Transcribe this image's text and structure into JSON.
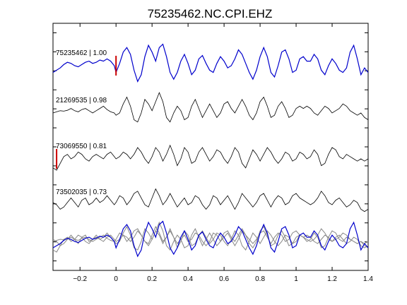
{
  "title": "75235462.NC.CPI.EHZ",
  "chart_data": {
    "type": "line",
    "title": "75235462.NC.CPI.EHZ",
    "xlabel": "",
    "ylabel": "",
    "xlim": [
      -0.35,
      1.4
    ],
    "xticks": [
      -0.2,
      0,
      0.2,
      0.4,
      0.6,
      0.8,
      1,
      1.2,
      1.4
    ],
    "xtick_labels": [
      "−0.2",
      "0",
      "0.2",
      "0.4",
      "0.6",
      "0.8",
      "1",
      "1.2",
      "1.4"
    ],
    "grid": false,
    "pick_color": "#cc0000",
    "series": [
      {
        "name": "75235462 | 1.00",
        "color": "#0000cc",
        "pick_x": 0.0,
        "x": [
          -0.35,
          -0.33,
          -0.31,
          -0.29,
          -0.27,
          -0.25,
          -0.23,
          -0.21,
          -0.19,
          -0.17,
          -0.15,
          -0.13,
          -0.11,
          -0.09,
          -0.07,
          -0.05,
          -0.03,
          -0.01,
          0.0,
          0.02,
          0.04,
          0.06,
          0.08,
          0.1,
          0.12,
          0.14,
          0.16,
          0.18,
          0.2,
          0.22,
          0.24,
          0.26,
          0.28,
          0.3,
          0.32,
          0.34,
          0.36,
          0.38,
          0.4,
          0.42,
          0.44,
          0.46,
          0.48,
          0.5,
          0.52,
          0.54,
          0.56,
          0.58,
          0.6,
          0.62,
          0.64,
          0.66,
          0.68,
          0.7,
          0.72,
          0.74,
          0.76,
          0.78,
          0.8,
          0.82,
          0.84,
          0.86,
          0.88,
          0.9,
          0.92,
          0.94,
          0.96,
          0.98,
          1.0,
          1.02,
          1.04,
          1.06,
          1.08,
          1.1,
          1.12,
          1.14,
          1.16,
          1.18,
          1.2,
          1.22,
          1.24,
          1.26,
          1.28,
          1.3,
          1.32,
          1.34,
          1.36,
          1.38,
          1.4
        ],
        "y": [
          -0.3,
          -0.2,
          -0.1,
          0.05,
          0.15,
          0.1,
          0.0,
          -0.05,
          0.05,
          0.15,
          0.2,
          0.1,
          0.15,
          0.25,
          0.2,
          0.3,
          0.2,
          0.0,
          -0.3,
          0.1,
          0.6,
          0.8,
          0.5,
          -0.2,
          -0.7,
          -0.4,
          0.4,
          0.9,
          0.6,
          0.2,
          0.8,
          0.95,
          0.4,
          -0.3,
          -0.6,
          -0.3,
          0.2,
          0.5,
          0.1,
          -0.4,
          -0.2,
          0.3,
          0.45,
          0.1,
          -0.2,
          -0.3,
          0.1,
          0.4,
          0.2,
          -0.1,
          0.0,
          0.3,
          0.7,
          0.5,
          0.1,
          -0.3,
          -0.6,
          -0.2,
          0.4,
          0.8,
          0.4,
          -0.3,
          -0.5,
          0.0,
          0.6,
          0.7,
          0.3,
          -0.3,
          -0.2,
          0.3,
          0.4,
          0.2,
          0.2,
          0.5,
          0.3,
          -0.2,
          -0.4,
          0.0,
          0.3,
          0.1,
          -0.2,
          -0.3,
          -0.1,
          0.6,
          0.9,
          0.3,
          -0.4,
          -0.1,
          -0.3
        ]
      },
      {
        "name": "21269535 | 0.98",
        "color": "#000000",
        "x": [
          -0.35,
          -0.33,
          -0.31,
          -0.29,
          -0.27,
          -0.25,
          -0.23,
          -0.21,
          -0.19,
          -0.17,
          -0.15,
          -0.13,
          -0.11,
          -0.09,
          -0.07,
          -0.05,
          -0.03,
          -0.01,
          0.0,
          0.02,
          0.04,
          0.06,
          0.08,
          0.1,
          0.12,
          0.14,
          0.16,
          0.18,
          0.2,
          0.22,
          0.24,
          0.26,
          0.28,
          0.3,
          0.32,
          0.34,
          0.36,
          0.38,
          0.4,
          0.42,
          0.44,
          0.46,
          0.48,
          0.5,
          0.52,
          0.54,
          0.56,
          0.58,
          0.6,
          0.62,
          0.64,
          0.66,
          0.68,
          0.7,
          0.72,
          0.74,
          0.76,
          0.78,
          0.8,
          0.82,
          0.84,
          0.86,
          0.88,
          0.9,
          0.92,
          0.94,
          0.96,
          0.98,
          1.0,
          1.02,
          1.04,
          1.06,
          1.08,
          1.1,
          1.12,
          1.14,
          1.16,
          1.18,
          1.2,
          1.22,
          1.24,
          1.26,
          1.28,
          1.3,
          1.32,
          1.34,
          1.36,
          1.38,
          1.4
        ],
        "y": [
          0.0,
          0.05,
          0.1,
          0.08,
          0.12,
          0.2,
          0.1,
          0.05,
          0.15,
          0.2,
          0.1,
          0.0,
          0.1,
          0.2,
          0.3,
          0.15,
          0.05,
          0.0,
          -0.1,
          0.0,
          0.4,
          0.7,
          0.3,
          -0.3,
          -0.4,
          0.0,
          0.6,
          0.4,
          0.1,
          0.5,
          0.9,
          0.5,
          -0.2,
          -0.4,
          0.0,
          0.3,
          0.1,
          -0.3,
          -0.2,
          0.3,
          0.6,
          0.2,
          -0.2,
          0.1,
          0.4,
          0.1,
          -0.2,
          0.0,
          0.4,
          0.5,
          0.2,
          0.0,
          0.3,
          0.6,
          0.3,
          -0.1,
          -0.3,
          0.0,
          0.5,
          0.7,
          0.3,
          -0.2,
          -0.1,
          0.3,
          0.5,
          0.2,
          -0.2,
          -0.1,
          0.2,
          0.3,
          0.2,
          0.3,
          0.2,
          0.0,
          -0.1,
          0.1,
          0.3,
          0.2,
          0.0,
          0.1,
          0.2,
          0.4,
          0.3,
          0.1,
          0.0,
          -0.1,
          0.0,
          -0.2,
          -0.3
        ]
      },
      {
        "name": "73069550 | 0.81",
        "color": "#000000",
        "pick_x": -0.33,
        "x": [
          -0.35,
          -0.33,
          -0.31,
          -0.29,
          -0.27,
          -0.25,
          -0.23,
          -0.21,
          -0.19,
          -0.17,
          -0.15,
          -0.13,
          -0.11,
          -0.09,
          -0.07,
          -0.05,
          -0.03,
          -0.01,
          0.0,
          0.02,
          0.04,
          0.06,
          0.08,
          0.1,
          0.12,
          0.14,
          0.16,
          0.18,
          0.2,
          0.22,
          0.24,
          0.26,
          0.28,
          0.3,
          0.32,
          0.34,
          0.36,
          0.38,
          0.4,
          0.42,
          0.44,
          0.46,
          0.48,
          0.5,
          0.52,
          0.54,
          0.56,
          0.58,
          0.6,
          0.62,
          0.64,
          0.66,
          0.68,
          0.7,
          0.72,
          0.74,
          0.76,
          0.78,
          0.8,
          0.82,
          0.84,
          0.86,
          0.88,
          0.9,
          0.92,
          0.94,
          0.96,
          0.98,
          1.0,
          1.02,
          1.04,
          1.06,
          1.08,
          1.1,
          1.12,
          1.14,
          1.16,
          1.18,
          1.2,
          1.22,
          1.24,
          1.26,
          1.28,
          1.3,
          1.32,
          1.34,
          1.36,
          1.38,
          1.4
        ],
        "y": [
          -0.4,
          -0.5,
          -0.2,
          0.1,
          0.2,
          0.0,
          0.1,
          0.3,
          0.2,
          0.0,
          -0.1,
          0.1,
          0.2,
          0.1,
          0.0,
          0.2,
          0.3,
          0.1,
          0.0,
          0.1,
          0.3,
          0.2,
          0.0,
          0.2,
          0.5,
          0.3,
          0.0,
          -0.2,
          0.1,
          0.5,
          0.3,
          -0.1,
          0.2,
          0.6,
          0.2,
          -0.3,
          0.0,
          0.5,
          0.3,
          -0.2,
          -0.1,
          0.3,
          0.5,
          0.2,
          -0.1,
          0.1,
          0.4,
          0.3,
          0.0,
          -0.2,
          0.1,
          0.5,
          0.3,
          -0.2,
          -0.4,
          0.0,
          0.4,
          0.2,
          -0.1,
          0.2,
          0.5,
          0.3,
          0.0,
          -0.2,
          0.0,
          0.3,
          0.2,
          -0.1,
          0.0,
          0.3,
          0.2,
          0.0,
          0.1,
          0.4,
          0.2,
          -0.3,
          -0.2,
          0.2,
          0.5,
          0.4,
          0.1,
          0.0,
          0.2,
          0.1,
          0.0,
          -0.1,
          0.0,
          -0.1,
          0.0
        ]
      },
      {
        "name": "73502035 | 0.73",
        "color": "#000000",
        "x": [
          -0.35,
          -0.33,
          -0.31,
          -0.29,
          -0.27,
          -0.25,
          -0.23,
          -0.21,
          -0.19,
          -0.17,
          -0.15,
          -0.13,
          -0.11,
          -0.09,
          -0.07,
          -0.05,
          -0.03,
          -0.01,
          0.0,
          0.02,
          0.04,
          0.06,
          0.08,
          0.1,
          0.12,
          0.14,
          0.16,
          0.18,
          0.2,
          0.22,
          0.24,
          0.26,
          0.28,
          0.3,
          0.32,
          0.34,
          0.36,
          0.38,
          0.4,
          0.42,
          0.44,
          0.46,
          0.48,
          0.5,
          0.52,
          0.54,
          0.56,
          0.58,
          0.6,
          0.62,
          0.64,
          0.66,
          0.68,
          0.7,
          0.72,
          0.74,
          0.76,
          0.78,
          0.8,
          0.82,
          0.84,
          0.86,
          0.88,
          0.9,
          0.92,
          0.94,
          0.96,
          0.98,
          1.0,
          1.02,
          1.04,
          1.06,
          1.08,
          1.1,
          1.12,
          1.14,
          1.16,
          1.18,
          1.2,
          1.22,
          1.24,
          1.26,
          1.28,
          1.3,
          1.32,
          1.34,
          1.36,
          1.38,
          1.4
        ],
        "y": [
          0.1,
          0.0,
          -0.2,
          -0.1,
          0.1,
          0.3,
          0.1,
          -0.1,
          0.2,
          0.3,
          0.0,
          0.1,
          0.3,
          0.1,
          0.2,
          0.4,
          0.2,
          0.0,
          0.1,
          0.4,
          0.3,
          0.0,
          0.2,
          0.5,
          0.6,
          0.3,
          0.0,
          -0.1,
          0.3,
          0.7,
          0.4,
          0.0,
          0.2,
          0.5,
          0.2,
          -0.1,
          0.1,
          0.3,
          0.0,
          0.1,
          0.4,
          0.3,
          0.0,
          -0.2,
          0.0,
          0.4,
          0.3,
          0.0,
          0.2,
          0.4,
          0.1,
          -0.2,
          0.1,
          0.5,
          0.3,
          0.1,
          -0.1,
          0.1,
          0.4,
          0.5,
          0.2,
          -0.1,
          0.2,
          0.4,
          0.3,
          0.0,
          0.1,
          0.4,
          0.5,
          0.3,
          0.2,
          0.1,
          0.0,
          0.1,
          0.3,
          0.6,
          0.4,
          0.1,
          0.0,
          0.2,
          0.3,
          0.1,
          -0.1,
          0.0,
          0.2,
          0.1,
          -0.2,
          -0.3,
          -0.2
        ]
      }
    ]
  }
}
